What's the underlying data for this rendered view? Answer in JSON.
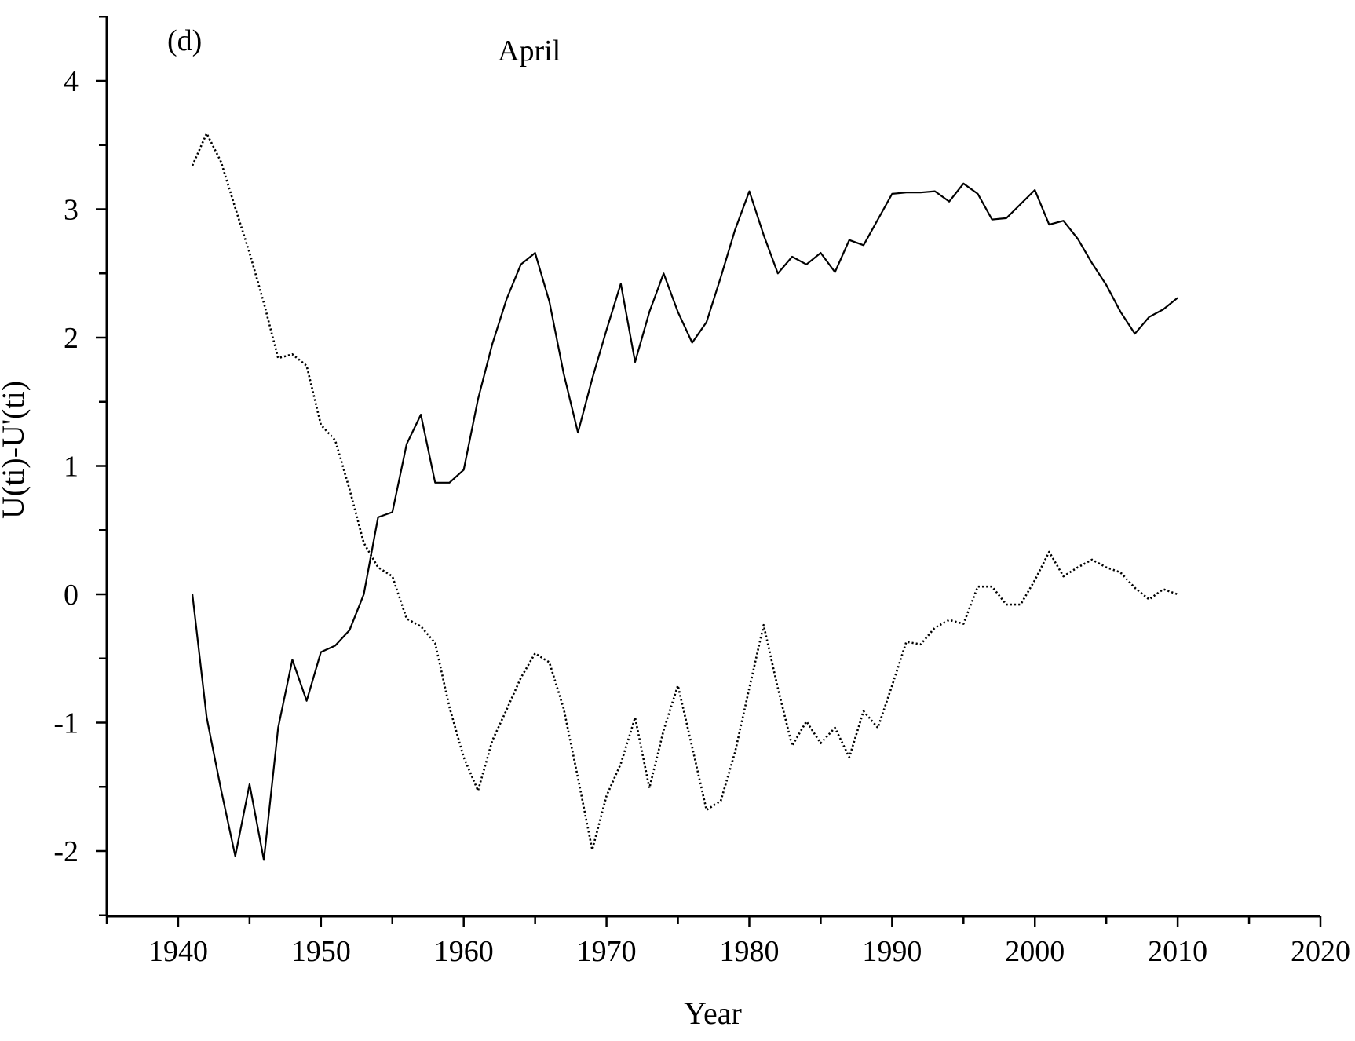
{
  "chart_data": {
    "type": "line",
    "panel_label": "(d)",
    "title": "April",
    "xlabel": "Year",
    "ylabel": "U(ti)-U'(ti)",
    "xlim": [
      1935,
      2020
    ],
    "ylim": [
      -2.5,
      4.5
    ],
    "x_ticks": [
      1940,
      1950,
      1960,
      1970,
      1980,
      1990,
      2000,
      2010,
      2020
    ],
    "y_ticks": [
      -2,
      -1,
      0,
      1,
      2,
      3,
      4
    ],
    "grid": false,
    "legend": "none",
    "x": [
      1941,
      1942,
      1943,
      1944,
      1945,
      1946,
      1947,
      1948,
      1949,
      1950,
      1951,
      1952,
      1953,
      1954,
      1955,
      1956,
      1957,
      1958,
      1959,
      1960,
      1961,
      1962,
      1963,
      1964,
      1965,
      1966,
      1967,
      1968,
      1969,
      1970,
      1971,
      1972,
      1973,
      1974,
      1975,
      1976,
      1977,
      1978,
      1979,
      1980,
      1981,
      1982,
      1983,
      1984,
      1985,
      1986,
      1987,
      1988,
      1989,
      1990,
      1991,
      1992,
      1993,
      1994,
      1995,
      1996,
      1997,
      1998,
      1999,
      2000,
      2001,
      2002,
      2003,
      2004,
      2005,
      2006,
      2007,
      2008,
      2009,
      2010
    ],
    "series": [
      {
        "style": "solid",
        "color": "#000000",
        "values": [
          0.0,
          -0.96,
          -1.52,
          -2.04,
          -1.48,
          -2.07,
          -1.04,
          -0.51,
          -0.83,
          -0.45,
          -0.4,
          -0.28,
          0.0,
          0.6,
          0.64,
          1.17,
          1.4,
          0.87,
          0.87,
          0.97,
          1.52,
          1.95,
          2.3,
          2.57,
          2.66,
          2.28,
          1.72,
          1.26,
          1.68,
          2.06,
          2.42,
          1.81,
          2.2,
          2.5,
          2.2,
          1.96,
          2.12,
          2.47,
          2.84,
          3.14,
          2.8,
          2.5,
          2.63,
          2.57,
          2.66,
          2.51,
          2.76,
          2.72,
          2.92,
          3.12,
          3.13,
          3.13,
          3.14,
          3.06,
          3.2,
          3.12,
          2.92,
          2.93,
          3.04,
          3.15,
          2.88,
          2.91,
          2.77,
          2.58,
          2.41,
          2.2,
          2.03,
          2.16,
          2.22,
          2.31
        ]
      },
      {
        "style": "dotted",
        "color": "#000000",
        "values": [
          3.34,
          3.59,
          3.37,
          3.01,
          2.66,
          2.27,
          1.84,
          1.87,
          1.78,
          1.32,
          1.2,
          0.82,
          0.4,
          0.21,
          0.14,
          -0.19,
          -0.25,
          -0.38,
          -0.88,
          -1.27,
          -1.53,
          -1.14,
          -0.9,
          -0.65,
          -0.46,
          -0.53,
          -0.89,
          -1.43,
          -1.99,
          -1.57,
          -1.32,
          -0.96,
          -1.51,
          -1.06,
          -0.71,
          -1.19,
          -1.68,
          -1.61,
          -1.23,
          -0.73,
          -0.24,
          -0.73,
          -1.18,
          -0.99,
          -1.16,
          -1.04,
          -1.27,
          -0.91,
          -1.04,
          -0.71,
          -0.37,
          -0.39,
          -0.26,
          -0.2,
          -0.23,
          0.06,
          0.06,
          -0.08,
          -0.08,
          0.11,
          0.33,
          0.14,
          0.21,
          0.27,
          0.21,
          0.17,
          0.05,
          -0.04,
          0.04,
          0.0
        ]
      }
    ]
  }
}
